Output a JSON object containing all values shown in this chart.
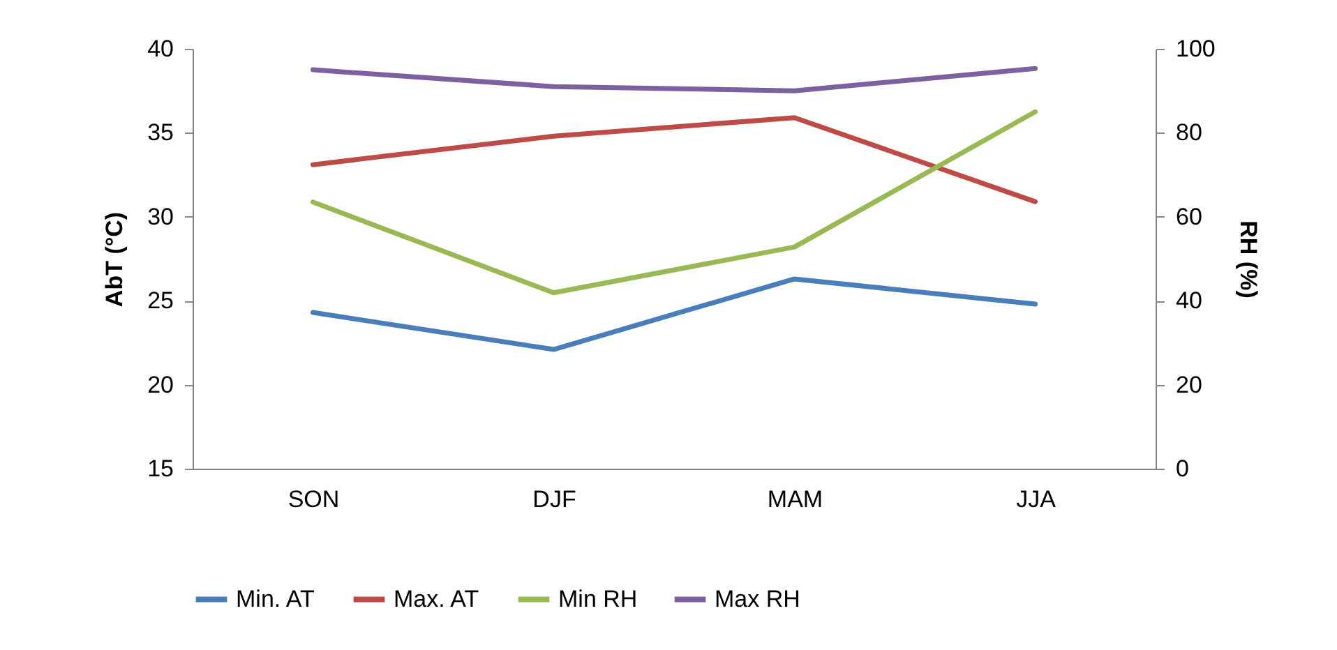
{
  "chart_data": {
    "type": "line",
    "categories": [
      "SON",
      "DJF",
      "MAM",
      "JJA"
    ],
    "ylabel": "AbT (°C)",
    "y2label": "RH (%)",
    "ylim": [
      15,
      40
    ],
    "yticks": [
      15,
      20,
      25,
      30,
      35,
      40
    ],
    "y2lim": [
      0,
      100
    ],
    "y2ticks": [
      0,
      20,
      40,
      60,
      80,
      100
    ],
    "legend": "bottom",
    "grid": false,
    "series": [
      {
        "name": "Min. AT",
        "color": "#4a7ebb",
        "values": [
          24.3,
          22.1,
          26.3,
          24.8
        ]
      },
      {
        "name": "Max. AT",
        "color": "#be4b48",
        "values": [
          33.1,
          34.8,
          35.9,
          30.9
        ]
      },
      {
        "name": "Min RH",
        "color": "#98b954",
        "axis": "y2",
        "values": [
          63.5,
          41.9,
          52.8,
          85.0
        ]
      },
      {
        "name": "Max RH",
        "color": "#7d60a0",
        "axis": "y2",
        "values": [
          95.0,
          91.0,
          90.0,
          95.3
        ]
      }
    ]
  }
}
